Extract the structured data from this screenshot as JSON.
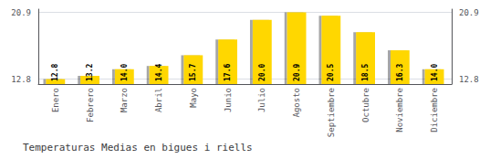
{
  "chart_data": {
    "type": "bar",
    "title": "Temperaturas Medias en bigues i riells",
    "categories": [
      "Enero",
      "Febrero",
      "Marzo",
      "Abril",
      "Mayo",
      "Junio",
      "Julio",
      "Agosto",
      "Septiembre",
      "Octubre",
      "Noviembre",
      "Diciembre"
    ],
    "values": [
      12.8,
      13.2,
      14.0,
      14.4,
      15.7,
      17.6,
      20.0,
      20.9,
      20.5,
      18.5,
      16.3,
      14.0
    ],
    "value_labels": [
      "12.8",
      "13.2",
      "14.0",
      "14.4",
      "15.7",
      "17.6",
      "20.0",
      "20.9",
      "20.5",
      "18.5",
      "16.3",
      "14.0"
    ],
    "color": "#FFD700",
    "ylim": [
      12.2,
      21.3
    ],
    "yticks": [
      12.8,
      20.9
    ],
    "grid": true,
    "data_labels": true
  }
}
